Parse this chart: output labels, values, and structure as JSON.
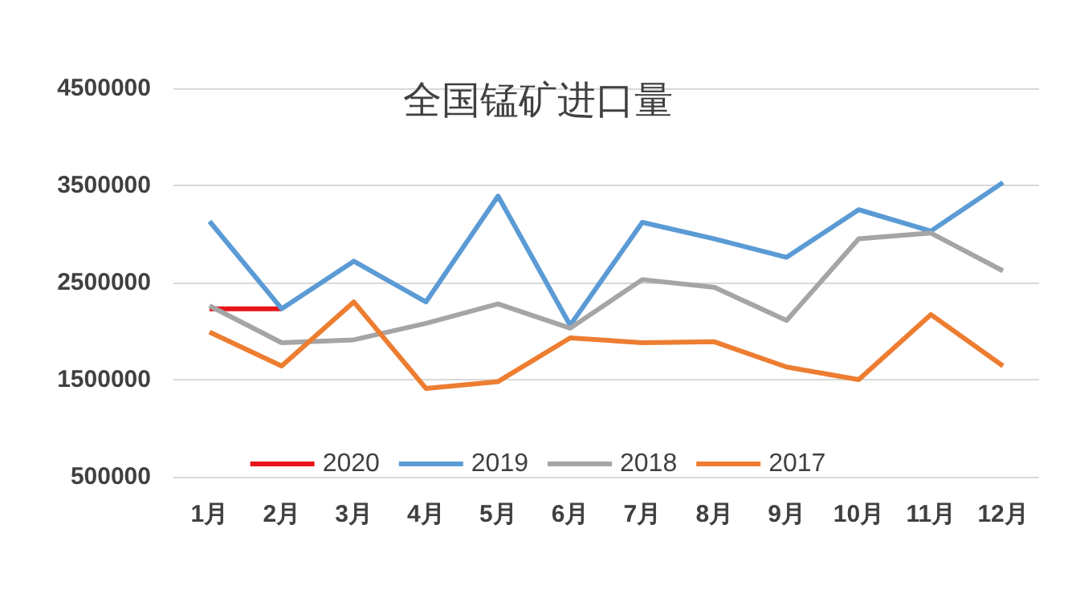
{
  "chart_data": {
    "type": "line",
    "title": "全国锰矿进口量",
    "categories": [
      "1月",
      "2月",
      "3月",
      "4月",
      "5月",
      "6月",
      "7月",
      "8月",
      "9月",
      "10月",
      "11月",
      "12月"
    ],
    "series": [
      {
        "name": "2020",
        "color": "#e8141b",
        "values": [
          2230000,
          2230000,
          null,
          null,
          null,
          null,
          null,
          null,
          null,
          null,
          null,
          null
        ]
      },
      {
        "name": "2019",
        "color": "#5b9bd5",
        "values": [
          3130000,
          2230000,
          2720000,
          2300000,
          3390000,
          2060000,
          3120000,
          2950000,
          2760000,
          3250000,
          3030000,
          3530000
        ]
      },
      {
        "name": "2018",
        "color": "#a5a5a5",
        "values": [
          2260000,
          1880000,
          1910000,
          2080000,
          2280000,
          2030000,
          2530000,
          2450000,
          2110000,
          2950000,
          3010000,
          2620000
        ]
      },
      {
        "name": "2017",
        "color": "#ed7d31",
        "values": [
          1990000,
          1640000,
          2300000,
          1410000,
          1480000,
          1930000,
          1880000,
          1890000,
          1630000,
          1500000,
          2170000,
          1640000
        ]
      }
    ],
    "ylim": [
      500000,
      4500000
    ],
    "yticks": [
      500000,
      1500000,
      2500000,
      3500000,
      4500000
    ],
    "grid": "y",
    "legend": "bottom",
    "marker": "none",
    "line_style": "solid"
  }
}
